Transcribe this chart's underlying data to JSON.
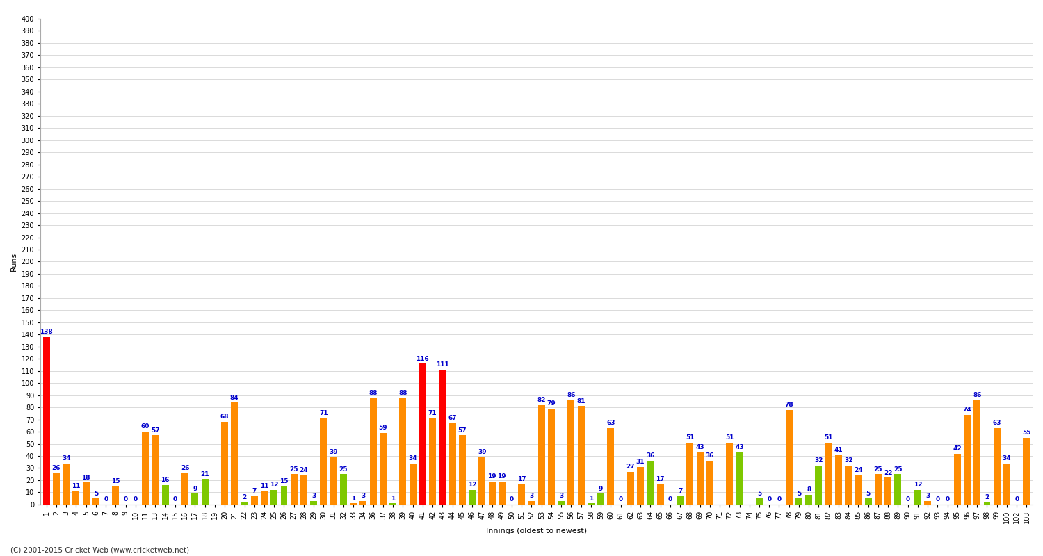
{
  "xlabel": "Innings (oldest to newest)",
  "ylabel": "Runs",
  "ylim": [
    0,
    400
  ],
  "footer": "(C) 2001-2015 Cricket Web (www.cricketweb.net)",
  "innings_labels": [
    "1",
    "2",
    "3",
    "4",
    "5",
    "6",
    "7",
    "8",
    "9",
    "10",
    "11",
    "13",
    "14",
    "15",
    "16",
    "17",
    "18",
    "19",
    "20",
    "21",
    "22",
    "23",
    "24",
    "25",
    "26",
    "27",
    "28",
    "29",
    "30",
    "31",
    "32",
    "33",
    "34",
    "36",
    "37",
    "38",
    "39",
    "40",
    "41",
    "42",
    "43",
    "44",
    "45",
    "46",
    "47",
    "48",
    "49",
    "50",
    "51",
    "52",
    "53",
    "54",
    "55",
    "56",
    "57",
    "58",
    "59",
    "60",
    "61",
    "62",
    "63",
    "64",
    "65",
    "66",
    "67",
    "68",
    "69",
    "70",
    "71",
    "72",
    "73",
    "74",
    "75",
    "76",
    "77",
    "78",
    "79",
    "80",
    "81",
    "82",
    "83",
    "84",
    "85",
    "86",
    "87",
    "88",
    "89",
    "90",
    "91",
    "92",
    "93",
    "94",
    "95",
    "96",
    "97",
    "98",
    "99",
    "100",
    "102",
    "103"
  ],
  "values": [
    138,
    26,
    34,
    11,
    18,
    5,
    0,
    15,
    0,
    0,
    60,
    57,
    16,
    0,
    26,
    9,
    21,
    0,
    68,
    84,
    2,
    7,
    11,
    12,
    15,
    25,
    24,
    3,
    71,
    39,
    25,
    1,
    3,
    88,
    59,
    1,
    88,
    34,
    116,
    71,
    111,
    67,
    57,
    12,
    39,
    19,
    19,
    0,
    17,
    3,
    82,
    79,
    3,
    86,
    81,
    1,
    9,
    63,
    0,
    27,
    31,
    36,
    17,
    0,
    7,
    51,
    43,
    36,
    0,
    51,
    43,
    0,
    5,
    0,
    0,
    78,
    5,
    8,
    32,
    51,
    41,
    32,
    24,
    5,
    25,
    22,
    25,
    0,
    12,
    3,
    0,
    0,
    42,
    74,
    86,
    2,
    63,
    34,
    0,
    55
  ],
  "colors": [
    "red",
    "orange",
    "orange",
    "orange",
    "orange",
    "orange",
    "green",
    "orange",
    "green",
    "green",
    "orange",
    "orange",
    "green",
    "green",
    "orange",
    "green",
    "green",
    "green",
    "orange",
    "orange",
    "green",
    "orange",
    "orange",
    "green",
    "green",
    "orange",
    "orange",
    "green",
    "orange",
    "orange",
    "green",
    "orange",
    "orange",
    "orange",
    "orange",
    "green",
    "orange",
    "orange",
    "red",
    "orange",
    "red",
    "orange",
    "orange",
    "green",
    "orange",
    "orange",
    "orange",
    "green",
    "orange",
    "orange",
    "orange",
    "orange",
    "green",
    "orange",
    "orange",
    "green",
    "green",
    "orange",
    "green",
    "orange",
    "orange",
    "green",
    "orange",
    "green",
    "green",
    "orange",
    "orange",
    "orange",
    "green",
    "orange",
    "green",
    "green",
    "green",
    "green",
    "green",
    "orange",
    "green",
    "green",
    "green",
    "orange",
    "orange",
    "orange",
    "orange",
    "green",
    "orange",
    "orange",
    "green",
    "green",
    "green",
    "orange",
    "green",
    "green",
    "orange",
    "orange",
    "orange",
    "green",
    "orange",
    "orange",
    "green",
    "orange"
  ],
  "red_color": "#ff0000",
  "orange_color": "#ff8c00",
  "green_color": "#7ec800",
  "bg_color": "#ffffff",
  "grid_color": "#cccccc",
  "label_color": "#0000cc",
  "label_fontsize": 6.5,
  "tick_fontsize": 7,
  "bar_width": 0.7,
  "show_zero": [
    6,
    8,
    9,
    13,
    47,
    58,
    63,
    73,
    74,
    75,
    87,
    90,
    91,
    98
  ]
}
